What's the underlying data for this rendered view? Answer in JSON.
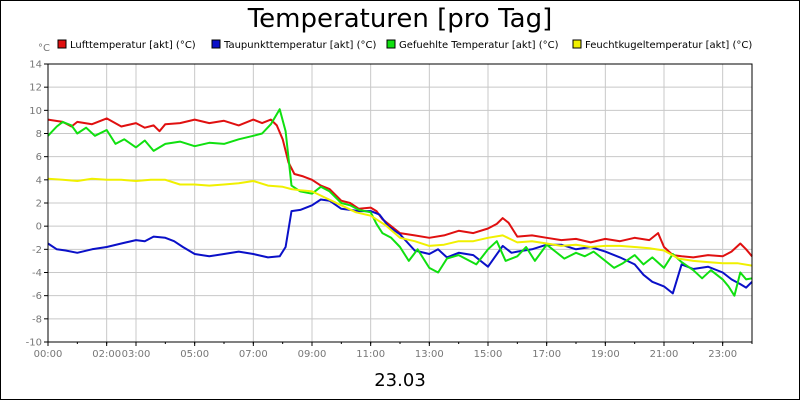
{
  "chart_data": {
    "type": "line",
    "title": "Temperaturen [pro Tag]",
    "xlabel": "23.03",
    "ylabel": "°C",
    "ylim": [
      -10,
      14
    ],
    "yticks": [
      14,
      12,
      10,
      8,
      6,
      4,
      2,
      0,
      -2,
      -4,
      -6,
      -8,
      -10
    ],
    "xlim": [
      0,
      24
    ],
    "xticks": [
      {
        "label": "00:00",
        "x": 0
      },
      {
        "label": "02:00",
        "x": 2
      },
      {
        "label": "03:00",
        "x": 3
      },
      {
        "label": "05:00",
        "x": 5
      },
      {
        "label": "07:00",
        "x": 7
      },
      {
        "label": "09:00",
        "x": 9
      },
      {
        "label": "11:00",
        "x": 11
      },
      {
        "label": "13:00",
        "x": 13
      },
      {
        "label": "15:00",
        "x": 15
      },
      {
        "label": "17:00",
        "x": 17
      },
      {
        "label": "19:00",
        "x": 19
      },
      {
        "label": "21:00",
        "x": 21
      },
      {
        "label": "23:00",
        "x": 23
      }
    ],
    "grid": true,
    "series": [
      {
        "name": "Lufttemperatur [akt] (°C)",
        "color": "#e01010",
        "x": [
          0,
          0.5,
          0.8,
          1.0,
          1.5,
          2.0,
          2.5,
          3.0,
          3.3,
          3.6,
          3.8,
          4.0,
          4.5,
          5.0,
          5.5,
          6.0,
          6.5,
          7.0,
          7.3,
          7.6,
          7.8,
          8.0,
          8.2,
          8.4,
          8.7,
          9.0,
          9.3,
          9.6,
          10.0,
          10.3,
          10.6,
          11.0,
          11.2,
          11.4,
          11.7,
          12.0,
          12.5,
          13.0,
          13.5,
          14.0,
          14.5,
          15.0,
          15.3,
          15.5,
          15.7,
          16.0,
          16.5,
          17.0,
          17.5,
          18.0,
          18.5,
          19.0,
          19.5,
          20.0,
          20.5,
          20.8,
          21.0,
          21.3,
          21.6,
          22.0,
          22.5,
          23.0,
          23.3,
          23.6,
          23.8,
          24.0
        ],
        "y": [
          9.2,
          9.0,
          8.6,
          9.0,
          8.8,
          9.3,
          8.6,
          8.9,
          8.5,
          8.7,
          8.2,
          8.8,
          8.9,
          9.2,
          8.9,
          9.1,
          8.7,
          9.2,
          8.9,
          9.2,
          8.7,
          7.5,
          5.5,
          4.5,
          4.3,
          4.0,
          3.5,
          3.2,
          2.2,
          2.0,
          1.5,
          1.6,
          1.3,
          0.6,
          0.0,
          -0.6,
          -0.8,
          -1.0,
          -0.8,
          -0.4,
          -0.6,
          -0.2,
          0.2,
          0.7,
          0.3,
          -0.9,
          -0.8,
          -1.0,
          -1.2,
          -1.1,
          -1.4,
          -1.1,
          -1.3,
          -1.0,
          -1.2,
          -0.6,
          -1.8,
          -2.5,
          -2.6,
          -2.7,
          -2.5,
          -2.6,
          -2.2,
          -1.5,
          -2.0,
          -2.6
        ]
      },
      {
        "name": "Taupunkttemperatur [akt] (°C)",
        "color": "#0a10c8",
        "x": [
          0,
          0.3,
          0.6,
          1.0,
          1.5,
          2.0,
          2.5,
          3.0,
          3.3,
          3.6,
          4.0,
          4.3,
          4.6,
          5.0,
          5.5,
          6.0,
          6.5,
          7.0,
          7.5,
          7.9,
          8.1,
          8.3,
          8.6,
          9.0,
          9.3,
          9.6,
          10.0,
          10.3,
          10.6,
          11.0,
          11.3,
          11.6,
          12.0,
          12.5,
          13.0,
          13.3,
          13.6,
          14.0,
          14.5,
          15.0,
          15.5,
          15.8,
          16.0,
          16.5,
          17.0,
          17.5,
          18.0,
          18.5,
          19.0,
          19.5,
          20.0,
          20.3,
          20.6,
          21.0,
          21.3,
          21.6,
          22.0,
          22.5,
          23.0,
          23.3,
          23.6,
          23.8,
          24.0
        ],
        "y": [
          -1.5,
          -2.0,
          -2.1,
          -2.3,
          -2.0,
          -1.8,
          -1.5,
          -1.2,
          -1.3,
          -0.9,
          -1.0,
          -1.3,
          -1.8,
          -2.4,
          -2.6,
          -2.4,
          -2.2,
          -2.4,
          -2.7,
          -2.6,
          -1.8,
          1.3,
          1.4,
          1.8,
          2.3,
          2.2,
          1.5,
          1.4,
          1.3,
          1.3,
          1.0,
          0.0,
          -0.7,
          -2.1,
          -2.4,
          -2.0,
          -2.7,
          -2.3,
          -2.5,
          -3.5,
          -1.7,
          -2.3,
          -2.2,
          -2.0,
          -1.6,
          -1.6,
          -2.0,
          -1.8,
          -2.2,
          -2.7,
          -3.3,
          -4.2,
          -4.8,
          -5.2,
          -5.8,
          -3.3,
          -3.7,
          -3.5,
          -4.0,
          -4.6,
          -5.0,
          -5.3,
          -4.8
        ]
      },
      {
        "name": "Gefuehlte Temperatur [akt] (°C)",
        "color": "#10e010",
        "x": [
          0,
          0.3,
          0.5,
          0.8,
          1.0,
          1.3,
          1.6,
          2.0,
          2.3,
          2.6,
          3.0,
          3.3,
          3.6,
          4.0,
          4.5,
          5.0,
          5.5,
          6.0,
          6.5,
          7.0,
          7.3,
          7.6,
          7.9,
          8.1,
          8.3,
          8.6,
          9.0,
          9.3,
          9.6,
          10.0,
          10.3,
          10.6,
          11.0,
          11.2,
          11.4,
          11.7,
          12.0,
          12.3,
          12.6,
          13.0,
          13.3,
          13.6,
          14.0,
          14.3,
          14.6,
          15.0,
          15.3,
          15.6,
          16.0,
          16.3,
          16.6,
          17.0,
          17.3,
          17.6,
          18.0,
          18.3,
          18.6,
          19.0,
          19.3,
          19.6,
          20.0,
          20.3,
          20.6,
          21.0,
          21.3,
          21.6,
          22.0,
          22.3,
          22.6,
          23.0,
          23.2,
          23.4,
          23.6,
          23.8,
          24.0
        ],
        "y": [
          7.8,
          8.6,
          9.0,
          8.7,
          8.0,
          8.5,
          7.8,
          8.3,
          7.1,
          7.5,
          6.8,
          7.4,
          6.5,
          7.1,
          7.3,
          6.9,
          7.2,
          7.1,
          7.5,
          7.8,
          8.0,
          8.8,
          10.1,
          8.2,
          3.5,
          3.0,
          2.8,
          3.4,
          3.0,
          2.0,
          1.8,
          1.4,
          1.2,
          0.2,
          -0.6,
          -1.0,
          -1.8,
          -3.0,
          -2.0,
          -3.6,
          -4.0,
          -2.8,
          -2.5,
          -2.9,
          -3.3,
          -2.0,
          -1.3,
          -3.0,
          -2.6,
          -1.8,
          -3.0,
          -1.6,
          -2.2,
          -2.8,
          -2.3,
          -2.6,
          -2.2,
          -3.0,
          -3.6,
          -3.2,
          -2.5,
          -3.3,
          -2.7,
          -3.6,
          -2.4,
          -3.1,
          -3.8,
          -4.5,
          -3.8,
          -4.6,
          -5.2,
          -6.0,
          -4.0,
          -4.6,
          -4.5
        ]
      },
      {
        "name": "Feuchtkugeltemperatur [akt] (°C)",
        "color": "#f0f000",
        "x": [
          0,
          0.5,
          1.0,
          1.5,
          2.0,
          2.5,
          3.0,
          3.5,
          4.0,
          4.5,
          5.0,
          5.5,
          6.0,
          6.5,
          7.0,
          7.5,
          8.0,
          8.3,
          8.6,
          9.0,
          9.5,
          10.0,
          10.5,
          11.0,
          11.5,
          12.0,
          12.5,
          13.0,
          13.5,
          14.0,
          14.5,
          15.0,
          15.5,
          16.0,
          16.5,
          17.0,
          17.5,
          18.0,
          18.5,
          19.0,
          19.5,
          20.0,
          20.5,
          21.0,
          21.5,
          22.0,
          22.5,
          23.0,
          23.5,
          24.0
        ],
        "y": [
          4.1,
          4.0,
          3.9,
          4.1,
          4.0,
          4.0,
          3.9,
          4.0,
          4.0,
          3.6,
          3.6,
          3.5,
          3.6,
          3.7,
          3.9,
          3.5,
          3.4,
          3.2,
          3.1,
          3.0,
          2.4,
          1.8,
          1.2,
          0.9,
          0.1,
          -1.0,
          -1.3,
          -1.7,
          -1.6,
          -1.3,
          -1.3,
          -1.0,
          -0.8,
          -1.4,
          -1.3,
          -1.5,
          -1.7,
          -1.6,
          -1.8,
          -1.7,
          -1.7,
          -1.8,
          -1.9,
          -2.1,
          -2.8,
          -3.0,
          -3.1,
          -3.2,
          -3.2,
          -3.4
        ]
      }
    ]
  }
}
